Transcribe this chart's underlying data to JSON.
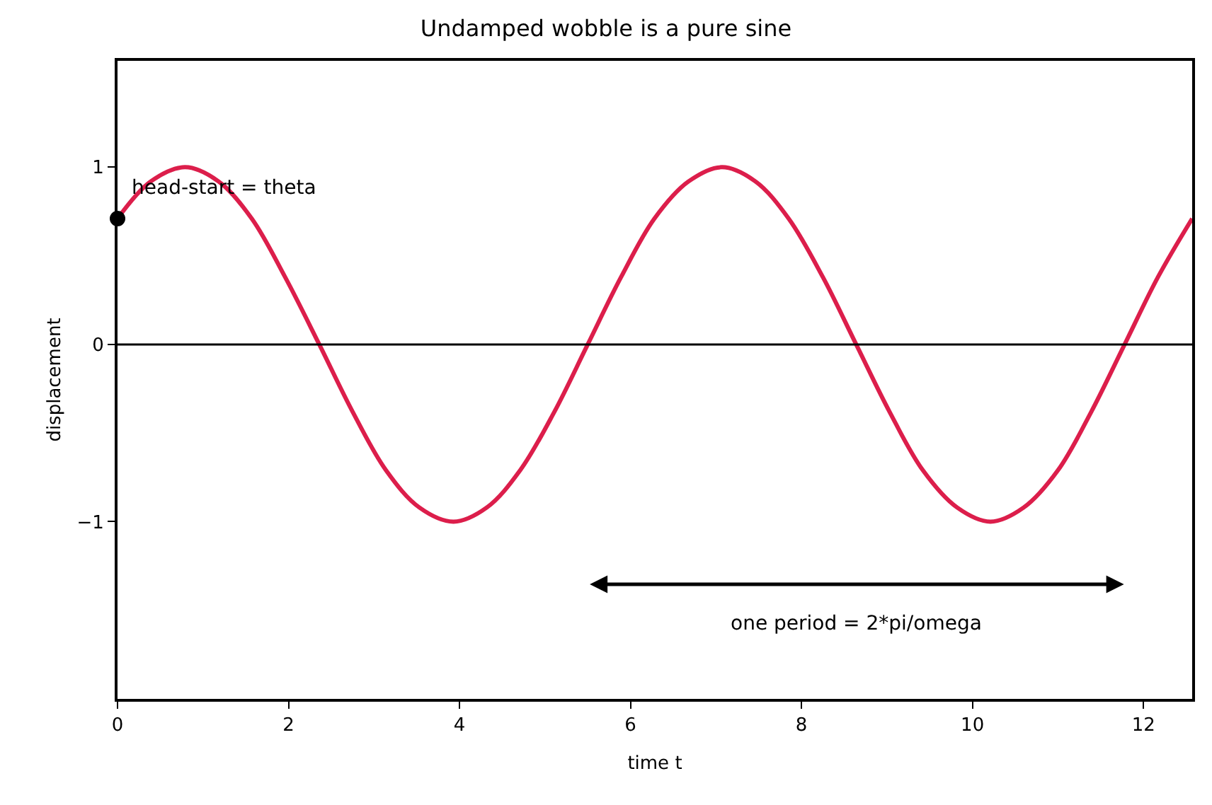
{
  "chart_data": {
    "type": "line",
    "title": "Undamped wobble is a pure sine",
    "xlabel": "time t",
    "ylabel": "displacement",
    "xlim": [
      0,
      12.57
    ],
    "xticks": [
      0,
      2,
      4,
      6,
      8,
      10,
      12
    ],
    "ylim": [
      -2,
      1.6
    ],
    "yticks": [
      {
        "value": -1,
        "label": "−1"
      },
      0,
      1
    ],
    "series": [
      {
        "color": "#dc1e4b",
        "marker": "none",
        "x": [
          0,
          0.39,
          0.79,
          1.18,
          1.57,
          1.96,
          2.36,
          2.75,
          3.14,
          3.53,
          3.93,
          4.32,
          4.71,
          5.11,
          5.5,
          5.89,
          6.28,
          6.68,
          7.07,
          7.46,
          7.85,
          8.25,
          8.64,
          9.03,
          9.42,
          9.82,
          10.21,
          10.6,
          11.0,
          11.39,
          11.78,
          12.17,
          12.57
        ],
        "values": [
          0.71,
          0.92,
          1,
          0.92,
          0.71,
          0.38,
          0,
          -0.38,
          -0.71,
          -0.92,
          -1,
          -0.92,
          -0.71,
          -0.38,
          0,
          0.38,
          0.71,
          0.92,
          1,
          0.92,
          0.71,
          0.38,
          0,
          -0.38,
          -0.71,
          -0.92,
          -1,
          -0.92,
          -0.71,
          -0.38,
          0,
          0.38,
          0.71
        ]
      },
      {
        "type": "scatter",
        "color": "#000000",
        "marker": "circle",
        "x": [
          0
        ],
        "values": [
          0.71
        ]
      }
    ],
    "ref_lines": [
      {
        "axis": "y",
        "value": 0,
        "color": "#000000"
      }
    ],
    "annotations": [
      {
        "text": "head-start = theta",
        "x": 0,
        "y": 0.71
      },
      "one period = 2*pi/omega"
    ]
  }
}
